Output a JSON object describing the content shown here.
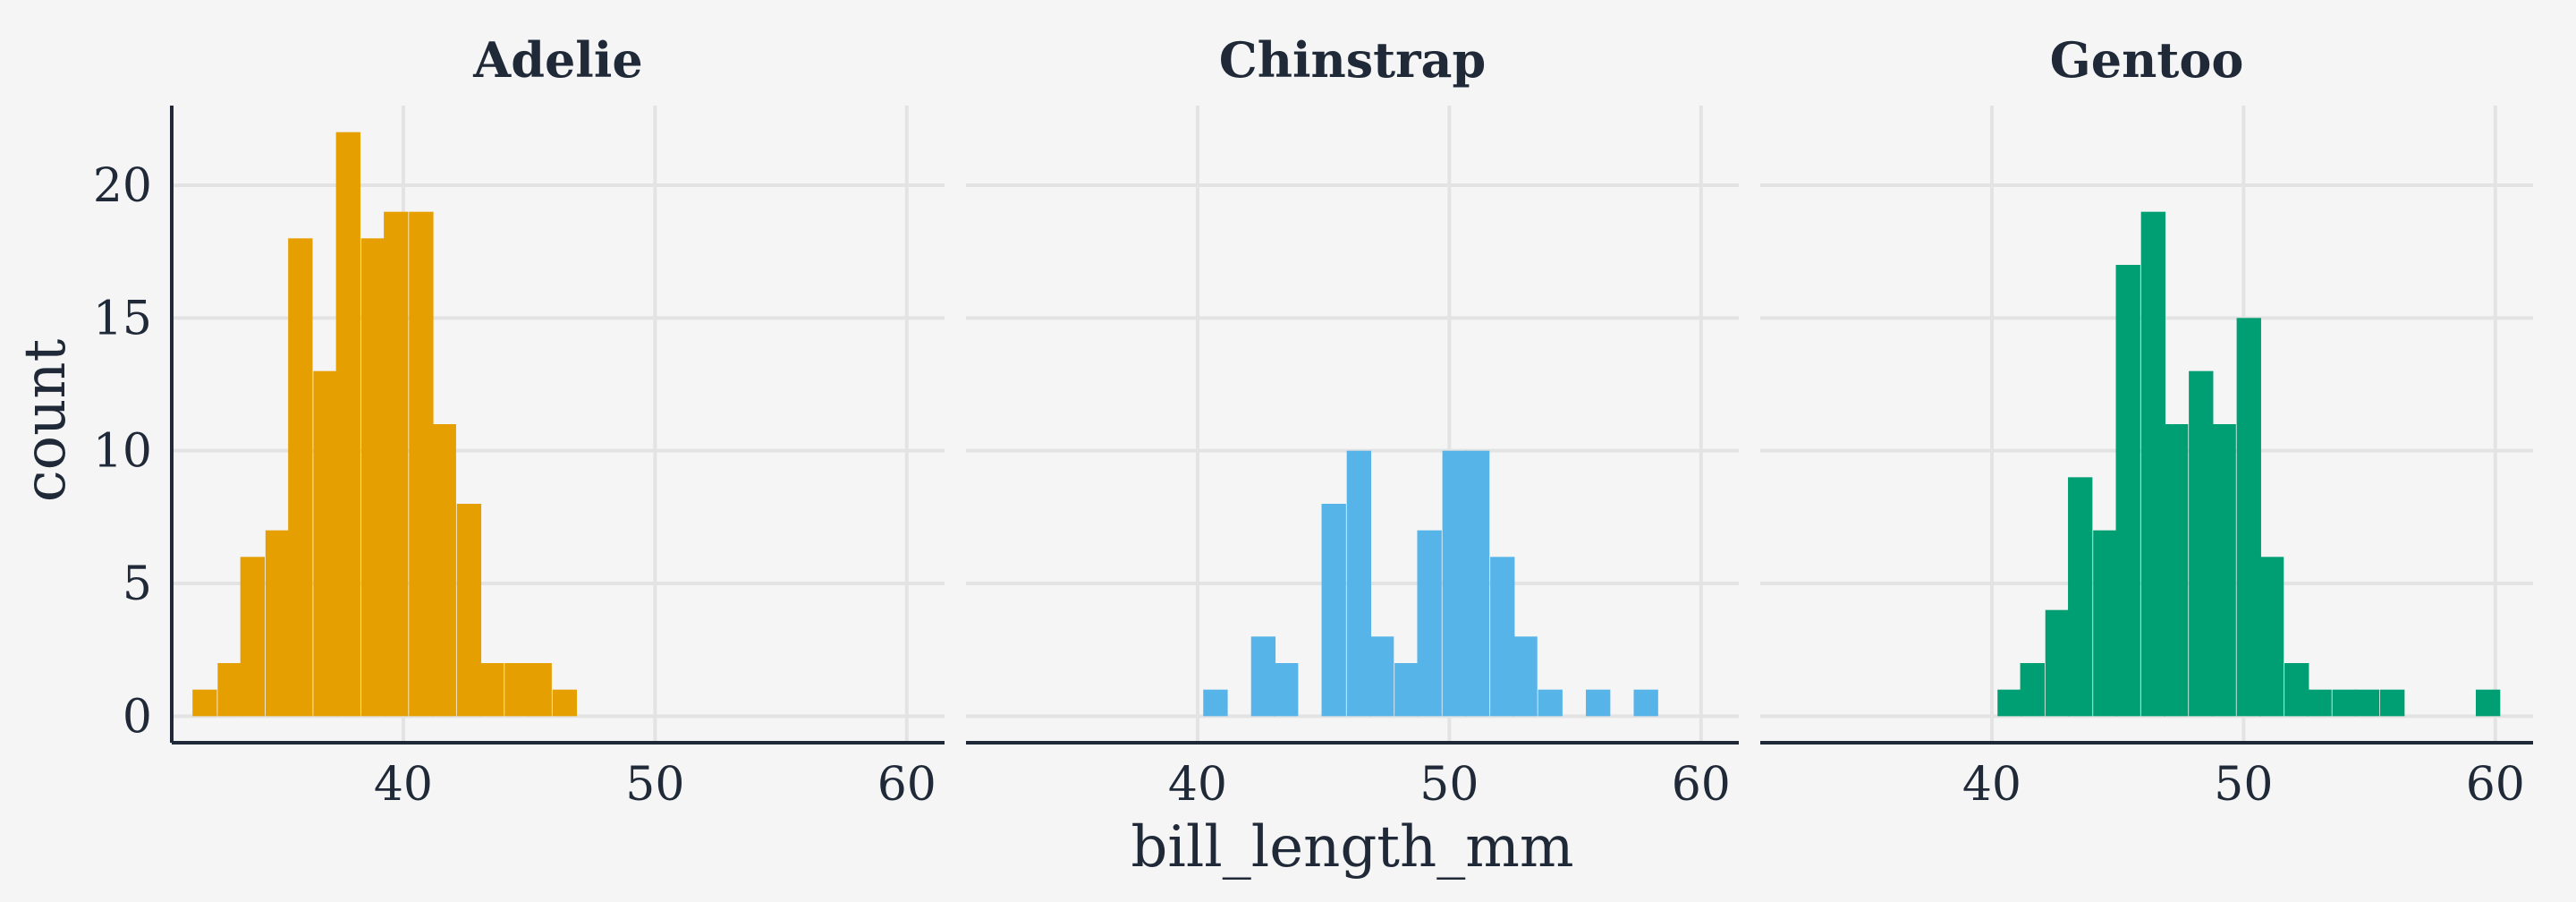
{
  "chart_data": {
    "type": "bar",
    "subtype": "faceted-histogram",
    "xlabel": "bill_length_mm",
    "ylabel": "count",
    "xlim": [
      30.8,
      61.5
    ],
    "ylim": [
      -1,
      23
    ],
    "x_ticks": [
      40,
      50,
      60
    ],
    "y_ticks": [
      0,
      5,
      10,
      15,
      20
    ],
    "bin_width": 0.95,
    "grid": true,
    "legend": "none",
    "panels": [
      {
        "name": "Adelie",
        "color": "#E69F00",
        "bins": [
          {
            "x": 32.1,
            "count": 1
          },
          {
            "x": 33.1,
            "count": 2
          },
          {
            "x": 34.0,
            "count": 6
          },
          {
            "x": 35.0,
            "count": 7
          },
          {
            "x": 35.9,
            "count": 18
          },
          {
            "x": 36.9,
            "count": 13
          },
          {
            "x": 37.8,
            "count": 22
          },
          {
            "x": 38.8,
            "count": 18
          },
          {
            "x": 39.7,
            "count": 19
          },
          {
            "x": 40.7,
            "count": 19
          },
          {
            "x": 41.6,
            "count": 11
          },
          {
            "x": 42.6,
            "count": 8
          },
          {
            "x": 43.5,
            "count": 2
          },
          {
            "x": 44.5,
            "count": 2
          },
          {
            "x": 45.4,
            "count": 2
          },
          {
            "x": 46.4,
            "count": 1
          }
        ]
      },
      {
        "name": "Chinstrap",
        "color": "#56B4E9",
        "bins": [
          {
            "x": 40.7,
            "count": 1
          },
          {
            "x": 42.6,
            "count": 3
          },
          {
            "x": 43.5,
            "count": 2
          },
          {
            "x": 45.4,
            "count": 8
          },
          {
            "x": 46.4,
            "count": 10
          },
          {
            "x": 47.3,
            "count": 3
          },
          {
            "x": 48.3,
            "count": 2
          },
          {
            "x": 49.2,
            "count": 7
          },
          {
            "x": 50.2,
            "count": 10
          },
          {
            "x": 51.1,
            "count": 10
          },
          {
            "x": 52.1,
            "count": 6
          },
          {
            "x": 53.0,
            "count": 3
          },
          {
            "x": 54.0,
            "count": 1
          },
          {
            "x": 55.9,
            "count": 1
          },
          {
            "x": 57.8,
            "count": 1
          }
        ]
      },
      {
        "name": "Gentoo",
        "color": "#009E73",
        "bins": [
          {
            "x": 40.7,
            "count": 1
          },
          {
            "x": 41.6,
            "count": 2
          },
          {
            "x": 42.6,
            "count": 4
          },
          {
            "x": 43.5,
            "count": 9
          },
          {
            "x": 44.5,
            "count": 7
          },
          {
            "x": 45.4,
            "count": 17
          },
          {
            "x": 46.4,
            "count": 19
          },
          {
            "x": 47.3,
            "count": 11
          },
          {
            "x": 48.3,
            "count": 13
          },
          {
            "x": 49.2,
            "count": 11
          },
          {
            "x": 50.2,
            "count": 15
          },
          {
            "x": 51.1,
            "count": 6
          },
          {
            "x": 52.1,
            "count": 2
          },
          {
            "x": 53.0,
            "count": 1
          },
          {
            "x": 54.0,
            "count": 1
          },
          {
            "x": 54.9,
            "count": 1
          },
          {
            "x": 55.9,
            "count": 1
          },
          {
            "x": 59.7,
            "count": 1
          }
        ]
      }
    ]
  }
}
